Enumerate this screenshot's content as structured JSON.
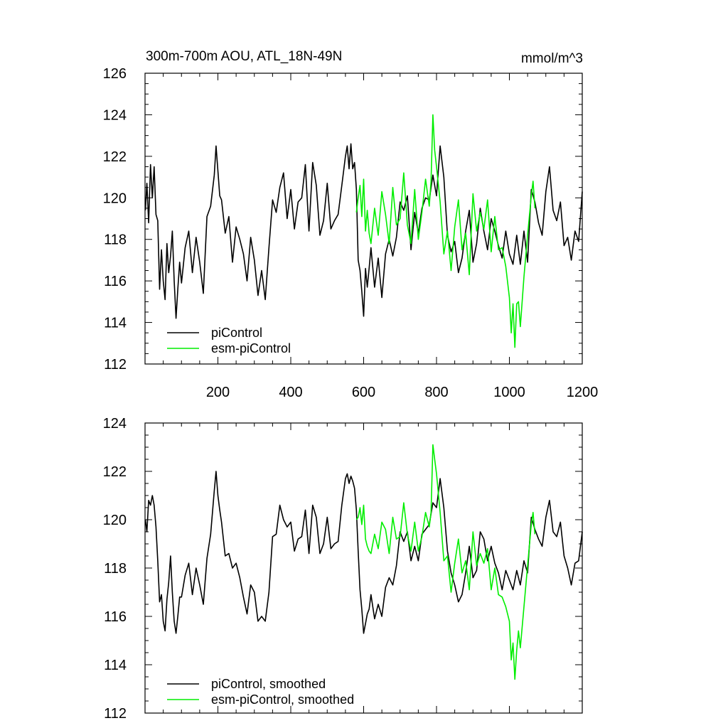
{
  "chart_data": [
    {
      "type": "line",
      "title": "300m-700m AOU, ATL_18N-49N",
      "units": "mmol/m^3",
      "xlim": [
        0,
        1200
      ],
      "ylim": [
        112,
        126
      ],
      "xticks": [
        200,
        400,
        600,
        800,
        1000,
        1200
      ],
      "xtick_labels": [
        "200",
        "400",
        "600",
        "800",
        "1000",
        "1200"
      ],
      "yticks": [
        112,
        114,
        116,
        118,
        120,
        122,
        124,
        126
      ],
      "ytick_labels": [
        "112",
        "114",
        "116",
        "118",
        "120",
        "122",
        "124",
        "126"
      ],
      "legend_position": "lower-left",
      "series": [
        {
          "name": "piControl",
          "color": "#000000",
          "x": [
            1,
            5,
            10,
            15,
            20,
            25,
            30,
            35,
            40,
            45,
            50,
            55,
            60,
            65,
            70,
            75,
            80,
            85,
            90,
            95,
            100,
            110,
            120,
            130,
            140,
            150,
            160,
            170,
            180,
            190,
            195,
            200,
            205,
            210,
            220,
            230,
            240,
            250,
            260,
            270,
            280,
            290,
            300,
            310,
            320,
            330,
            340,
            350,
            360,
            370,
            380,
            390,
            400,
            410,
            420,
            430,
            440,
            450,
            460,
            470,
            480,
            490,
            500,
            510,
            520,
            530,
            540,
            550,
            555,
            560,
            565,
            570,
            575,
            580,
            585,
            590,
            595,
            600,
            605,
            610,
            615,
            620,
            630,
            640,
            650,
            660,
            670,
            680,
            690,
            700,
            710,
            720,
            730,
            740,
            750,
            760,
            770,
            780,
            790,
            800,
            810,
            820,
            830,
            840,
            850,
            860,
            870,
            880,
            890,
            900,
            910,
            920,
            930,
            940,
            950,
            960,
            970,
            980,
            990,
            1000,
            1010,
            1020,
            1030,
            1040,
            1050,
            1060,
            1070,
            1080,
            1090,
            1100,
            1110,
            1120,
            1130,
            1140,
            1150,
            1160,
            1170,
            1180,
            1190,
            1200
          ],
          "y": [
            119.4,
            120.7,
            118.8,
            121.6,
            120.0,
            121.5,
            119.2,
            118.9,
            115.6,
            117.5,
            116.0,
            115.1,
            117.8,
            116.4,
            117.2,
            118.4,
            116.0,
            114.2,
            115.6,
            116.9,
            115.9,
            117.6,
            118.4,
            116.4,
            118.1,
            116.9,
            115.4,
            119.1,
            119.6,
            121.1,
            122.5,
            121.3,
            120.1,
            119.9,
            118.3,
            119.1,
            116.9,
            118.6,
            118.0,
            117.3,
            116.0,
            118.1,
            117.0,
            115.3,
            116.5,
            115.1,
            117.6,
            119.9,
            119.3,
            120.5,
            121.2,
            119.0,
            120.4,
            118.5,
            119.8,
            120.0,
            121.6,
            118.4,
            121.7,
            120.6,
            118.2,
            118.9,
            120.7,
            118.5,
            118.9,
            119.2,
            120.6,
            122.0,
            122.5,
            121.4,
            122.6,
            121.4,
            121.7,
            120.4,
            117.0,
            116.5,
            115.5,
            114.3,
            116.6,
            115.7,
            116.6,
            117.6,
            115.7,
            117.1,
            115.2,
            117.3,
            118.0,
            117.2,
            118.1,
            119.8,
            119.4,
            120.1,
            117.5,
            119.3,
            118.3,
            119.5,
            120.0,
            119.9,
            121.1,
            120.1,
            122.5,
            121.0,
            118.2,
            117.4,
            117.9,
            116.4,
            117.1,
            118.4,
            119.4,
            116.9,
            117.8,
            119.5,
            118.4,
            117.5,
            119.0,
            118.4,
            117.7,
            117.1,
            118.4,
            117.3,
            116.8,
            118.2,
            116.8,
            118.4,
            116.9,
            120.4,
            119.8,
            118.8,
            118.2,
            120.3,
            121.5,
            119.4,
            118.9,
            119.8,
            117.7,
            118.1,
            117.0,
            118.4,
            117.9,
            120.3
          ]
        },
        {
          "name": "esm-piControl",
          "color": "#00ee00",
          "x": [
            580,
            585,
            590,
            595,
            600,
            605,
            610,
            615,
            620,
            630,
            640,
            650,
            660,
            670,
            680,
            690,
            700,
            710,
            720,
            730,
            740,
            750,
            760,
            770,
            780,
            785,
            790,
            795,
            800,
            810,
            820,
            830,
            840,
            850,
            860,
            870,
            880,
            890,
            900,
            910,
            920,
            930,
            940,
            950,
            960,
            970,
            980,
            990,
            1000,
            1005,
            1010,
            1015,
            1020,
            1025,
            1030,
            1040,
            1050,
            1060,
            1065,
            1070
          ],
          "y": [
            119.3,
            120.0,
            120.6,
            119.1,
            120.9,
            118.4,
            119.4,
            118.3,
            117.8,
            119.5,
            118.2,
            120.3,
            119.2,
            117.8,
            120.5,
            118.7,
            119.0,
            121.2,
            118.7,
            117.8,
            120.4,
            118.0,
            119.3,
            120.9,
            119.6,
            120.8,
            124.0,
            122.3,
            121.5,
            119.8,
            117.3,
            118.4,
            116.5,
            118.6,
            119.9,
            117.5,
            118.3,
            116.3,
            120.2,
            118.4,
            119.3,
            118.5,
            119.9,
            117.4,
            119.1,
            117.5,
            117.6,
            116.7,
            115.2,
            113.5,
            114.9,
            112.8,
            114.9,
            115.0,
            113.8,
            116.2,
            118.2,
            120.1,
            120.8,
            119.5
          ]
        }
      ]
    },
    {
      "type": "line",
      "xlim": [
        0,
        1200
      ],
      "ylim": [
        112,
        124
      ],
      "yticks": [
        112,
        114,
        116,
        118,
        120,
        122,
        124
      ],
      "ytick_labels": [
        "112",
        "114",
        "116",
        "118",
        "120",
        "122",
        "124"
      ],
      "xticks": [
        200,
        400,
        600,
        800,
        1000,
        1200
      ],
      "legend_position": "lower-left",
      "series": [
        {
          "name": "piControl, smoothed",
          "color": "#000000",
          "x": [
            1,
            5,
            10,
            15,
            20,
            25,
            30,
            35,
            40,
            45,
            50,
            55,
            60,
            65,
            70,
            75,
            80,
            85,
            90,
            95,
            100,
            110,
            120,
            130,
            140,
            150,
            160,
            170,
            180,
            190,
            195,
            200,
            205,
            210,
            220,
            230,
            240,
            250,
            260,
            270,
            280,
            290,
            300,
            310,
            320,
            330,
            340,
            350,
            360,
            370,
            380,
            390,
            400,
            410,
            420,
            430,
            440,
            450,
            460,
            470,
            480,
            490,
            500,
            510,
            520,
            530,
            540,
            550,
            555,
            560,
            565,
            570,
            575,
            580,
            585,
            590,
            595,
            600,
            605,
            610,
            615,
            620,
            630,
            640,
            650,
            660,
            670,
            680,
            690,
            700,
            710,
            720,
            730,
            740,
            750,
            760,
            770,
            780,
            790,
            800,
            810,
            820,
            830,
            840,
            850,
            860,
            870,
            880,
            890,
            900,
            910,
            920,
            930,
            940,
            950,
            960,
            970,
            980,
            990,
            1000,
            1010,
            1020,
            1030,
            1040,
            1050,
            1060,
            1070,
            1080,
            1090,
            1100,
            1110,
            1120,
            1130,
            1140,
            1150,
            1160,
            1170,
            1180,
            1190,
            1200
          ],
          "y": [
            120.0,
            119.5,
            120.8,
            120.6,
            121.0,
            120.6,
            119.7,
            118.3,
            116.6,
            116.9,
            115.8,
            115.4,
            116.7,
            117.4,
            118.5,
            117.0,
            115.8,
            115.3,
            116.0,
            116.8,
            116.8,
            117.7,
            118.2,
            116.9,
            118.0,
            117.3,
            116.5,
            118.4,
            119.4,
            121.2,
            122.0,
            121.0,
            120.4,
            119.9,
            118.5,
            118.6,
            118.0,
            118.2,
            117.6,
            116.8,
            116.1,
            117.3,
            117.0,
            115.8,
            116.0,
            115.8,
            117.0,
            119.3,
            119.4,
            120.6,
            120.0,
            119.7,
            119.9,
            118.7,
            119.2,
            119.3,
            120.4,
            118.6,
            120.6,
            120.1,
            118.6,
            119.0,
            120.1,
            118.8,
            119.0,
            119.1,
            120.6,
            121.7,
            121.9,
            121.5,
            121.8,
            121.6,
            121.3,
            120.4,
            118.7,
            117.1,
            116.3,
            115.3,
            115.7,
            116.1,
            116.3,
            116.9,
            115.9,
            116.5,
            116.0,
            117.2,
            117.6,
            117.3,
            118.1,
            119.5,
            119.1,
            119.5,
            118.3,
            118.9,
            118.3,
            119.4,
            119.6,
            119.8,
            120.7,
            120.5,
            121.7,
            120.5,
            118.7,
            117.8,
            117.3,
            116.6,
            116.9,
            117.8,
            118.9,
            117.6,
            117.9,
            119.5,
            119.2,
            118.3,
            118.9,
            118.2,
            117.8,
            117.1,
            117.9,
            117.5,
            117.1,
            117.9,
            117.3,
            118.3,
            117.8,
            120.1,
            119.6,
            119.2,
            118.9,
            120.1,
            120.8,
            119.5,
            119.3,
            119.9,
            118.5,
            118.0,
            117.3,
            118.2,
            118.3,
            119.5
          ]
        },
        {
          "name": "esm-piControl, smoothed",
          "color": "#00ee00",
          "x": [
            580,
            585,
            590,
            595,
            600,
            605,
            610,
            615,
            620,
            630,
            640,
            650,
            660,
            670,
            680,
            690,
            700,
            710,
            720,
            730,
            740,
            750,
            760,
            770,
            780,
            785,
            790,
            795,
            800,
            810,
            820,
            830,
            840,
            850,
            860,
            870,
            880,
            890,
            900,
            910,
            920,
            930,
            940,
            950,
            960,
            970,
            980,
            990,
            1000,
            1005,
            1010,
            1015,
            1020,
            1025,
            1030,
            1040,
            1050,
            1060,
            1065,
            1070
          ],
          "y": [
            120.0,
            120.1,
            120.5,
            119.8,
            120.6,
            119.2,
            118.9,
            118.7,
            118.6,
            119.4,
            118.8,
            119.9,
            119.6,
            118.6,
            120.1,
            119.2,
            119.3,
            120.7,
            119.4,
            118.7,
            119.9,
            118.7,
            119.3,
            120.3,
            119.7,
            120.3,
            123.1,
            122.5,
            121.9,
            120.3,
            118.3,
            118.5,
            117.0,
            118.2,
            119.2,
            117.8,
            118.3,
            117.1,
            119.5,
            118.1,
            118.6,
            118.2,
            118.8,
            117.1,
            118.0,
            116.9,
            116.8,
            116.4,
            115.8,
            114.2,
            114.9,
            113.4,
            114.6,
            115.4,
            114.7,
            116.4,
            118.1,
            119.8,
            120.3,
            119.4
          ]
        }
      ]
    }
  ]
}
